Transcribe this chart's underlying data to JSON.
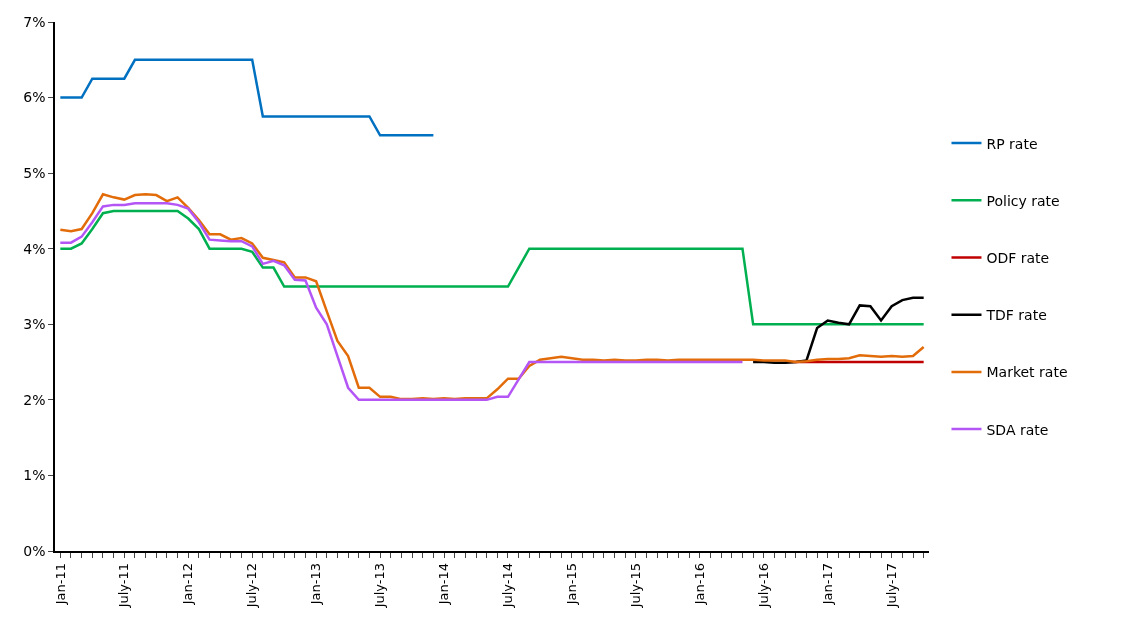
{
  "chart_data": {
    "type": "line",
    "categories": [
      "Jan-11",
      null,
      null,
      null,
      null,
      null,
      "July-11",
      null,
      null,
      null,
      null,
      null,
      "Jan-12",
      null,
      null,
      null,
      null,
      null,
      "July-12",
      null,
      null,
      null,
      null,
      null,
      "Jan-13",
      null,
      null,
      null,
      null,
      null,
      "July-13",
      null,
      null,
      null,
      null,
      null,
      "Jan-14",
      null,
      null,
      null,
      null,
      null,
      "July-14",
      null,
      null,
      null,
      null,
      null,
      "Jan-15",
      null,
      null,
      null,
      null,
      null,
      "July-15",
      null,
      null,
      null,
      null,
      null,
      "Jan-16",
      null,
      null,
      null,
      null,
      null,
      "July-16",
      null,
      null,
      null,
      null,
      null,
      "Jan-17",
      null,
      null,
      null,
      null,
      null,
      "July-17",
      null,
      null,
      null
    ],
    "series": [
      {
        "name": "RP rate",
        "color": "#0070c0",
        "values": [
          6.0,
          6.0,
          6.0,
          6.25,
          6.25,
          6.25,
          6.25,
          6.5,
          6.5,
          6.5,
          6.5,
          6.5,
          6.5,
          6.5,
          6.5,
          6.5,
          6.5,
          6.5,
          6.5,
          5.75,
          5.75,
          5.75,
          5.75,
          5.75,
          5.75,
          5.75,
          5.75,
          5.75,
          5.75,
          5.75,
          5.5,
          5.5,
          5.5,
          5.5,
          5.5,
          5.5,
          null,
          null,
          null,
          null,
          null,
          null,
          null,
          null,
          null,
          null,
          null,
          null,
          null,
          null,
          null,
          null,
          null,
          null,
          null,
          null,
          null,
          null,
          null,
          null,
          null,
          null,
          null,
          null,
          null,
          null,
          null,
          null,
          null,
          null,
          null,
          null,
          null,
          null,
          null,
          null,
          null,
          null,
          null,
          null,
          null,
          null
        ]
      },
      {
        "name": "Policy rate",
        "color": "#00b050",
        "values": [
          4.0,
          4.0,
          4.07,
          4.26,
          4.47,
          4.5,
          4.5,
          4.5,
          4.5,
          4.5,
          4.5,
          4.5,
          4.4,
          4.26,
          4.0,
          4.0,
          4.0,
          4.0,
          3.96,
          3.75,
          3.75,
          3.5,
          3.5,
          3.5,
          3.5,
          3.5,
          3.5,
          3.5,
          3.5,
          3.5,
          3.5,
          3.5,
          3.5,
          3.5,
          3.5,
          3.5,
          3.5,
          3.5,
          3.5,
          3.5,
          3.5,
          3.5,
          3.5,
          3.75,
          4.0,
          4.0,
          4.0,
          4.0,
          4.0,
          4.0,
          4.0,
          4.0,
          4.0,
          4.0,
          4.0,
          4.0,
          4.0,
          4.0,
          4.0,
          4.0,
          4.0,
          4.0,
          4.0,
          4.0,
          4.0,
          3.0,
          3.0,
          3.0,
          3.0,
          3.0,
          3.0,
          3.0,
          3.0,
          3.0,
          3.0,
          3.0,
          3.0,
          3.0,
          3.0,
          3.0,
          3.0,
          3.0
        ]
      },
      {
        "name": "ODF rate",
        "color": "#c00000",
        "values": [
          null,
          null,
          null,
          null,
          null,
          null,
          null,
          null,
          null,
          null,
          null,
          null,
          null,
          null,
          null,
          null,
          null,
          null,
          null,
          null,
          null,
          null,
          null,
          null,
          null,
          null,
          null,
          null,
          null,
          null,
          null,
          null,
          null,
          null,
          null,
          null,
          null,
          null,
          null,
          null,
          null,
          null,
          null,
          null,
          null,
          null,
          null,
          null,
          null,
          null,
          null,
          null,
          null,
          null,
          null,
          null,
          null,
          null,
          null,
          null,
          null,
          null,
          null,
          null,
          null,
          null,
          null,
          null,
          2.5,
          2.5,
          2.5,
          2.5,
          2.5,
          2.5,
          2.5,
          2.5,
          2.5,
          2.5,
          2.5,
          2.5,
          2.5,
          2.5
        ]
      },
      {
        "name": "TDF rate",
        "color": "#000000",
        "values": [
          null,
          null,
          null,
          null,
          null,
          null,
          null,
          null,
          null,
          null,
          null,
          null,
          null,
          null,
          null,
          null,
          null,
          null,
          null,
          null,
          null,
          null,
          null,
          null,
          null,
          null,
          null,
          null,
          null,
          null,
          null,
          null,
          null,
          null,
          null,
          null,
          null,
          null,
          null,
          null,
          null,
          null,
          null,
          null,
          null,
          null,
          null,
          null,
          null,
          null,
          null,
          null,
          null,
          null,
          null,
          null,
          null,
          null,
          null,
          null,
          null,
          null,
          null,
          null,
          null,
          2.5,
          2.5,
          2.49,
          2.49,
          2.5,
          2.52,
          2.95,
          3.05,
          3.02,
          3.0,
          3.25,
          3.24,
          3.05,
          3.24,
          3.32,
          3.35,
          3.35
        ]
      },
      {
        "name": "Market rate",
        "color": "#e36c0a",
        "values": [
          4.25,
          4.23,
          4.26,
          4.47,
          4.72,
          4.68,
          4.65,
          4.71,
          4.72,
          4.71,
          4.63,
          4.68,
          4.54,
          4.38,
          4.19,
          4.19,
          4.12,
          4.14,
          4.07,
          3.88,
          3.85,
          3.82,
          3.62,
          3.62,
          3.57,
          3.17,
          2.78,
          2.58,
          2.16,
          2.16,
          2.04,
          2.04,
          2.01,
          2.01,
          2.02,
          2.01,
          2.02,
          2.01,
          2.02,
          2.02,
          2.02,
          2.14,
          2.28,
          2.28,
          2.45,
          2.53,
          2.55,
          2.57,
          2.55,
          2.53,
          2.53,
          2.52,
          2.53,
          2.52,
          2.52,
          2.53,
          2.53,
          2.52,
          2.53,
          2.53,
          2.53,
          2.53,
          2.53,
          2.53,
          2.53,
          2.53,
          2.52,
          2.52,
          2.52,
          2.5,
          2.51,
          2.53,
          2.54,
          2.54,
          2.55,
          2.59,
          2.58,
          2.57,
          2.58,
          2.57,
          2.58,
          2.7
        ]
      },
      {
        "name": "SDA rate",
        "color": "#b455f5",
        "values": [
          4.08,
          4.08,
          4.16,
          4.35,
          4.56,
          4.58,
          4.58,
          4.6,
          4.6,
          4.6,
          4.6,
          4.58,
          4.53,
          4.35,
          4.12,
          4.11,
          4.1,
          4.1,
          4.03,
          3.8,
          3.84,
          3.78,
          3.59,
          3.58,
          3.22,
          3.0,
          2.58,
          2.16,
          2.0,
          2.0,
          2.0,
          2.0,
          2.0,
          2.0,
          2.0,
          2.0,
          2.0,
          2.0,
          2.0,
          2.0,
          2.0,
          2.04,
          2.04,
          2.27,
          2.5,
          2.5,
          2.5,
          2.5,
          2.5,
          2.5,
          2.5,
          2.5,
          2.5,
          2.5,
          2.5,
          2.5,
          2.5,
          2.5,
          2.5,
          2.5,
          2.5,
          2.5,
          2.5,
          2.5,
          2.5,
          null,
          null,
          null,
          null,
          null,
          null,
          null,
          null,
          null,
          null,
          null,
          null,
          null,
          null,
          null,
          null,
          null
        ]
      }
    ],
    "ylim": [
      0,
      7
    ],
    "yticks": [
      {
        "value": 0,
        "label": "0%"
      },
      {
        "value": 1,
        "label": "1%"
      },
      {
        "value": 2,
        "label": "2%"
      },
      {
        "value": 3,
        "label": "3%"
      },
      {
        "value": 4,
        "label": "4%"
      },
      {
        "value": 5,
        "label": "5%"
      },
      {
        "value": 6,
        "label": "6%"
      },
      {
        "value": 7,
        "label": "7%"
      }
    ],
    "legend": "right",
    "marker": "none",
    "line_style": "solid"
  }
}
